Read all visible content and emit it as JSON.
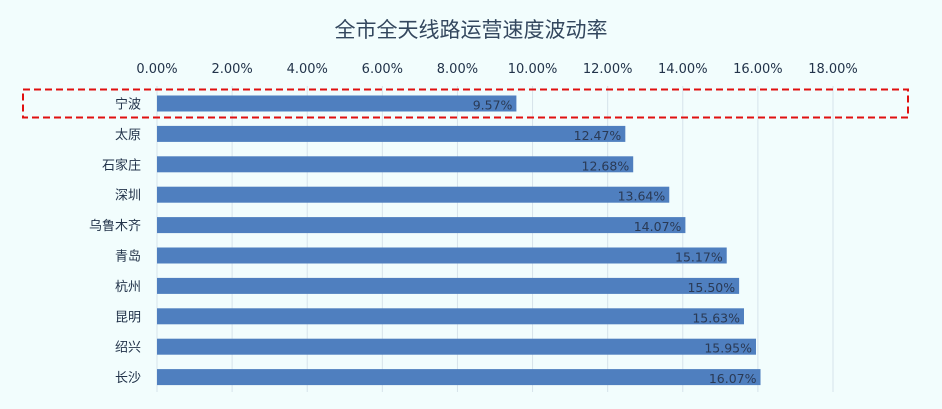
{
  "chart_data": {
    "type": "bar",
    "orientation": "horizontal",
    "title": "全市全天线路运营速度波动率",
    "categories": [
      "宁波",
      "太原",
      "石家庄",
      "深圳",
      "乌鲁木齐",
      "青岛",
      "杭州",
      "昆明",
      "绍兴",
      "长沙"
    ],
    "values": [
      9.57,
      12.47,
      12.68,
      13.64,
      14.07,
      15.17,
      15.5,
      15.63,
      15.95,
      16.07
    ],
    "value_labels": [
      "9.57%",
      "12.47%",
      "12.68%",
      "13.64%",
      "14.07%",
      "15.17%",
      "15.50%",
      "15.63%",
      "15.95%",
      "16.07%"
    ],
    "ticks": [
      "0.00%",
      "2.00%",
      "4.00%",
      "6.00%",
      "8.00%",
      "10.00%",
      "12.00%",
      "14.00%",
      "16.00%",
      "18.00%"
    ],
    "xlim": [
      0,
      18
    ],
    "axis_position": "top",
    "grid": true,
    "highlighted_category": "宁波",
    "colors": {
      "bar": "#4f7fbf",
      "highlight": "#e01010",
      "background": "#f2fdfd"
    }
  }
}
